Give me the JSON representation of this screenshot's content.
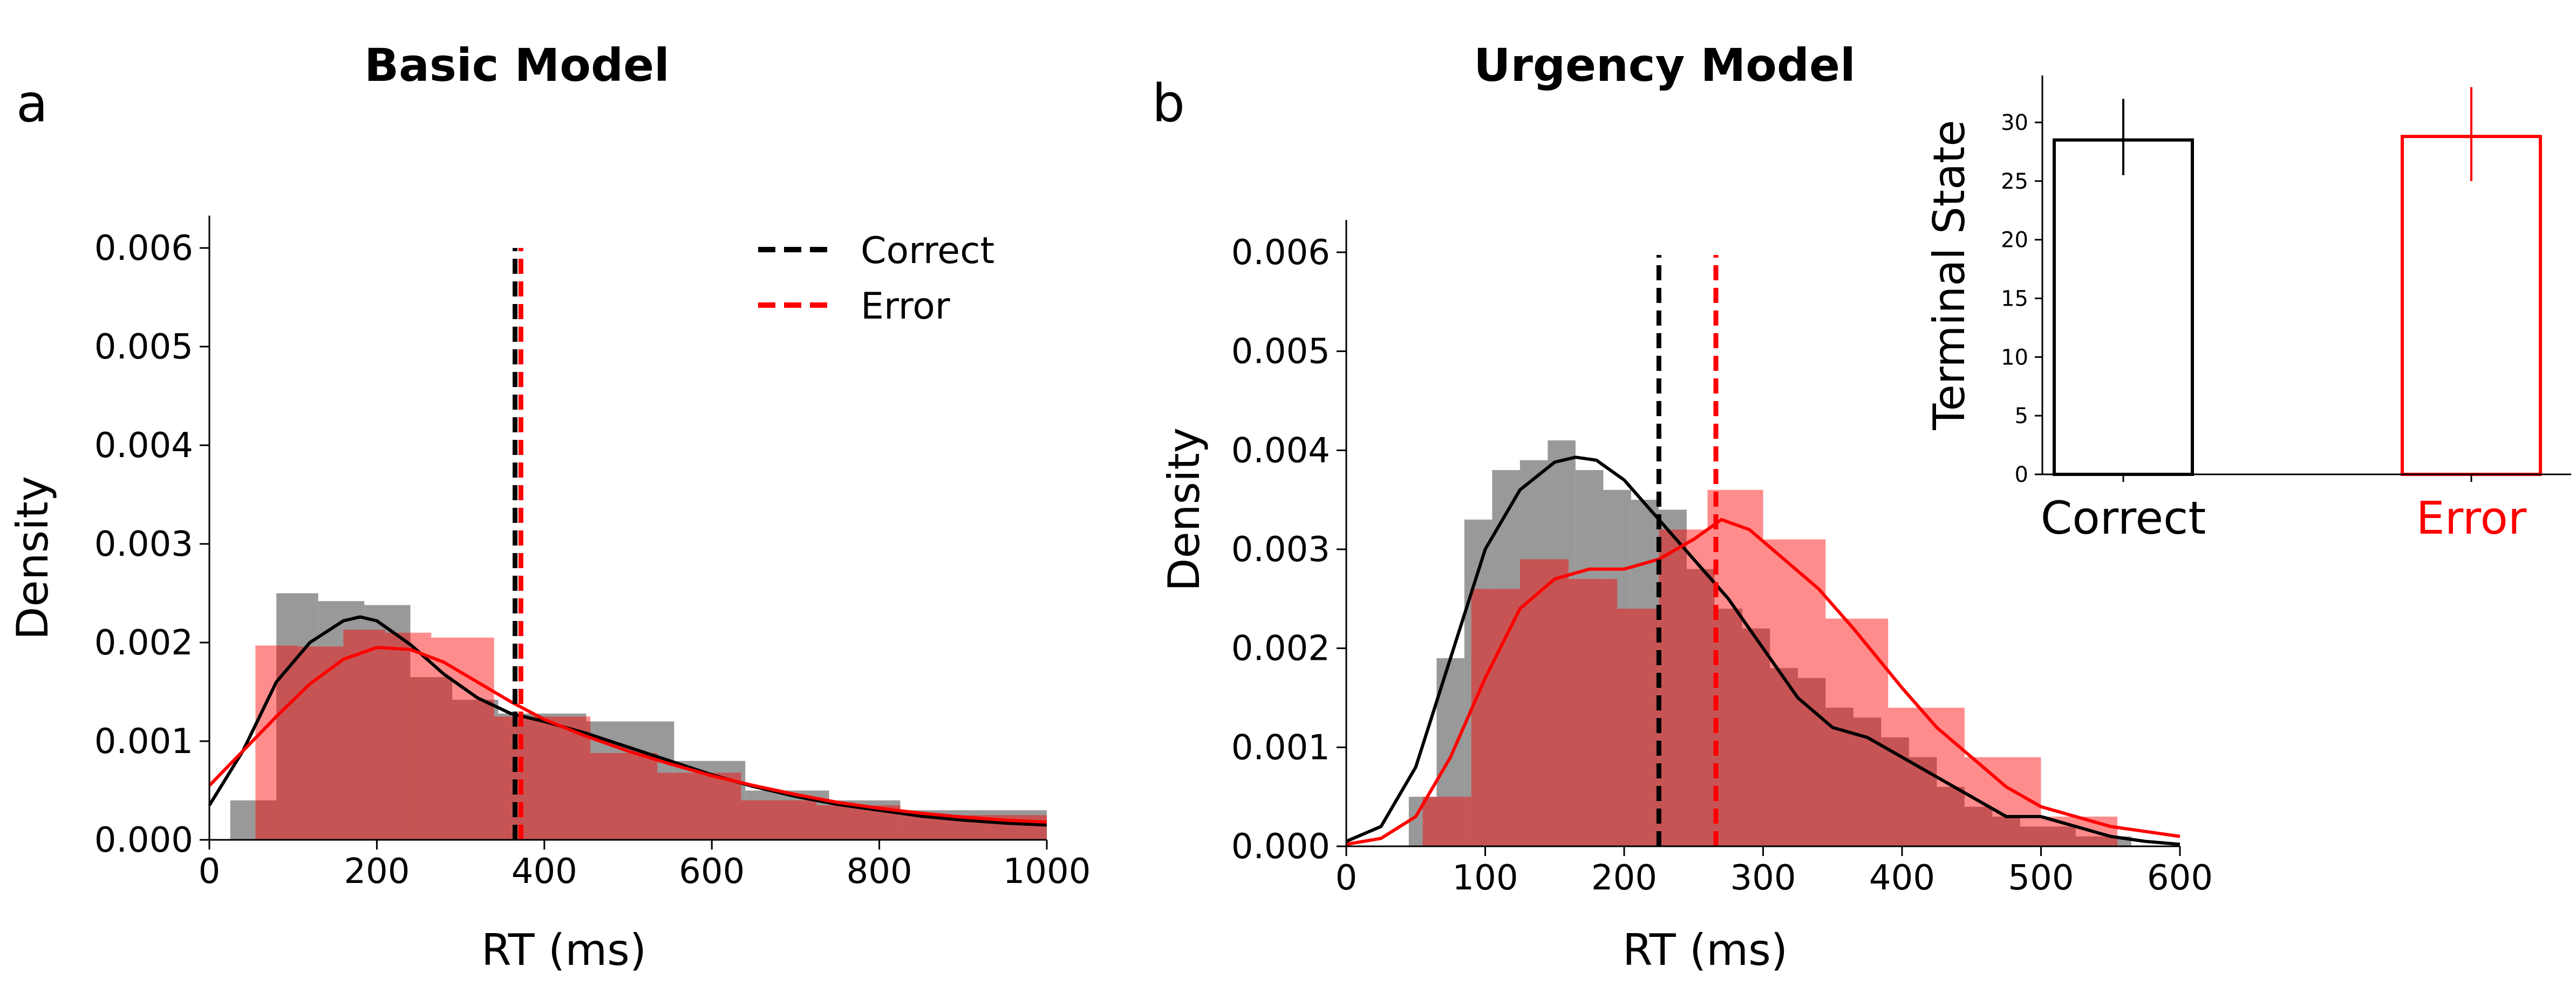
{
  "chart_data": [
    {
      "panel": "a",
      "type": "histogram+kde",
      "title": "Basic Model",
      "xlabel": "RT (ms)",
      "ylabel": "Density",
      "xlim": [
        0,
        1000
      ],
      "ylim": [
        0,
        0.006
      ],
      "xticks": [
        0,
        200,
        400,
        600,
        800,
        1000
      ],
      "yticks": [
        "0.000",
        "0.001",
        "0.002",
        "0.003",
        "0.004",
        "0.005",
        "0.006"
      ],
      "legend": {
        "placement": "top-right",
        "entries": [
          {
            "label": "Correct",
            "color": "#000000",
            "style": "dashed"
          },
          {
            "label": "Error",
            "color": "#ff0000",
            "style": "dashed"
          }
        ]
      },
      "series": [
        {
          "name": "Correct",
          "color": "#000000",
          "hist_color": "#7f7f7f",
          "bin_edges": [
            25,
            80,
            130,
            185,
            240,
            290,
            345,
            400,
            450,
            555,
            640,
            740,
            825,
            1000
          ],
          "hist_values": [
            0.0004,
            0.0025,
            0.00242,
            0.00238,
            0.00165,
            0.00142,
            0.00128,
            0.00128,
            0.0012,
            0.0008,
            0.0005,
            0.0004,
            0.0003
          ],
          "kde_x": [
            0,
            40,
            80,
            120,
            160,
            180,
            200,
            240,
            280,
            320,
            360,
            400,
            450,
            500,
            550,
            600,
            650,
            700,
            750,
            800,
            850,
            900,
            950,
            1000
          ],
          "kde_y": [
            0.00035,
            0.0009,
            0.0016,
            0.002,
            0.00222,
            0.00226,
            0.00222,
            0.00198,
            0.00168,
            0.00144,
            0.00128,
            0.0012,
            0.00108,
            0.00094,
            0.0008,
            0.00066,
            0.00054,
            0.00044,
            0.00036,
            0.0003,
            0.00024,
            0.0002,
            0.00017,
            0.00015
          ],
          "mean": 365
        },
        {
          "name": "Error",
          "color": "#ff0000",
          "hist_color": "#ff0000",
          "bin_edges": [
            55,
            105,
            160,
            210,
            265,
            340,
            400,
            455,
            535,
            635,
            725,
            825,
            1000
          ],
          "hist_values": [
            0.00197,
            0.00196,
            0.00213,
            0.0021,
            0.00205,
            0.00125,
            0.00125,
            0.00088,
            0.00068,
            0.0004,
            0.00035,
            0.00025
          ],
          "kde_x": [
            0,
            40,
            80,
            120,
            160,
            200,
            240,
            280,
            320,
            360,
            400,
            450,
            500,
            550,
            600,
            650,
            700,
            750,
            800,
            850,
            900,
            950,
            1000
          ],
          "kde_y": [
            0.00055,
            0.0009,
            0.00125,
            0.00158,
            0.00183,
            0.00195,
            0.00193,
            0.0018,
            0.0016,
            0.0014,
            0.00122,
            0.00105,
            0.0009,
            0.00077,
            0.00065,
            0.00055,
            0.00046,
            0.00038,
            0.00032,
            0.00027,
            0.00023,
            0.0002,
            0.00018
          ],
          "mean": 372
        }
      ]
    },
    {
      "panel": "b",
      "type": "histogram+kde",
      "title": "Urgency Model",
      "xlabel": "RT (ms)",
      "ylabel": "Density",
      "xlim": [
        0,
        600
      ],
      "ylim": [
        0,
        0.006
      ],
      "xticks": [
        0,
        100,
        200,
        300,
        400,
        500,
        600
      ],
      "yticks": [
        "0.000",
        "0.001",
        "0.002",
        "0.003",
        "0.004",
        "0.005",
        "0.006"
      ],
      "series": [
        {
          "name": "Correct",
          "color": "#000000",
          "hist_color": "#7f7f7f",
          "bin_edges": [
            45,
            65,
            85,
            105,
            125,
            145,
            165,
            185,
            205,
            225,
            245,
            265,
            285,
            305,
            325,
            345,
            365,
            385,
            405,
            425,
            445,
            465,
            485,
            505,
            525,
            545,
            565
          ],
          "hist_values": [
            0.0005,
            0.0019,
            0.0033,
            0.0038,
            0.0039,
            0.0041,
            0.0038,
            0.0036,
            0.0035,
            0.0034,
            0.0028,
            0.0024,
            0.0022,
            0.0018,
            0.0017,
            0.0014,
            0.0013,
            0.0011,
            0.0009,
            0.0006,
            0.0004,
            0.0003,
            0.0002,
            0.0002,
            0.0001,
            0.0001
          ],
          "kde_x": [
            0,
            25,
            50,
            75,
            100,
            125,
            150,
            165,
            180,
            200,
            225,
            250,
            275,
            300,
            325,
            350,
            375,
            400,
            425,
            450,
            475,
            500,
            525,
            550,
            575,
            600
          ],
          "kde_y": [
            5e-05,
            0.0002,
            0.0008,
            0.0019,
            0.003,
            0.0036,
            0.00388,
            0.00393,
            0.0039,
            0.0037,
            0.0033,
            0.0029,
            0.0025,
            0.002,
            0.0015,
            0.0012,
            0.0011,
            0.0009,
            0.0007,
            0.0005,
            0.0003,
            0.0003,
            0.0002,
            0.0001,
            5e-05,
            2e-05
          ],
          "mean": 225
        },
        {
          "name": "Error",
          "color": "#ff0000",
          "hist_color": "#ff0000",
          "bin_edges": [
            55,
            90,
            125,
            160,
            195,
            225,
            260,
            300,
            345,
            390,
            445,
            500,
            555
          ],
          "hist_values": [
            0.0005,
            0.0026,
            0.0029,
            0.0027,
            0.0024,
            0.0032,
            0.0036,
            0.0031,
            0.0023,
            0.0014,
            0.0009,
            0.0003
          ],
          "kde_x": [
            0,
            25,
            50,
            75,
            100,
            125,
            150,
            175,
            200,
            225,
            250,
            270,
            290,
            315,
            340,
            365,
            400,
            425,
            450,
            475,
            500,
            525,
            550,
            575,
            600
          ],
          "kde_y": [
            2e-05,
            8e-05,
            0.0003,
            0.0009,
            0.0017,
            0.0024,
            0.0027,
            0.0028,
            0.0028,
            0.0029,
            0.0031,
            0.0033,
            0.0032,
            0.0029,
            0.0026,
            0.0022,
            0.0016,
            0.0012,
            0.0009,
            0.0006,
            0.0004,
            0.0003,
            0.0002,
            0.00015,
            0.0001
          ],
          "mean": 266
        }
      ]
    },
    {
      "panel": "b-inset",
      "type": "bar",
      "categories": [
        "Correct",
        "Error"
      ],
      "category_colors": [
        "#000000",
        "#ff0000"
      ],
      "values": [
        28.5,
        28.8
      ],
      "error_ranges": [
        [
          25.5,
          32.0
        ],
        [
          25.0,
          33.0
        ]
      ],
      "ylabel": "Terminal State",
      "ylim": [
        0,
        34
      ],
      "yticks": [
        "0",
        "5",
        "10",
        "15",
        "20",
        "25",
        "30"
      ]
    }
  ],
  "panel_labels": {
    "a": "a",
    "b": "b"
  }
}
